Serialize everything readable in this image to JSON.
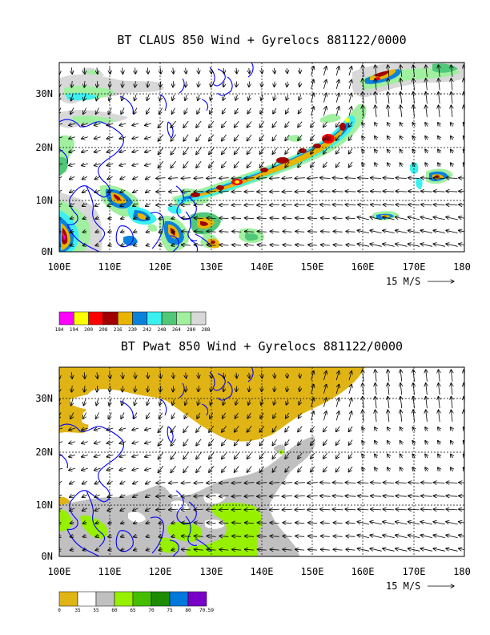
{
  "panels": [
    {
      "id": "claus",
      "title": "BT CLAUS 850 Wind + Gyrelocs 881122/0000",
      "y_ticks": [
        "30N",
        "20N",
        "10N",
        "0N"
      ],
      "x_ticks": [
        "100E",
        "110E",
        "120E",
        "130E",
        "140E",
        "150E",
        "160E",
        "170E",
        "180"
      ],
      "ref_vector_label": "15 M/S",
      "colorbar_labels": [
        "184",
        "194",
        "200",
        "208",
        "216",
        "230",
        "242",
        "248",
        "264",
        "280",
        "288"
      ],
      "colorbar_colors": [
        "#ff00ff",
        "#ffff00",
        "#ff0000",
        "#a00000",
        "#e8b400",
        "#0a82dc",
        "#3cf0f0",
        "#50c878",
        "#a0f0a0",
        "#d8d8d8"
      ]
    },
    {
      "id": "pwat",
      "title": "BT Pwat 850 Wind + Gyrelocs 881122/0000",
      "y_ticks": [
        "30N",
        "20N",
        "10N",
        "0N"
      ],
      "x_ticks": [
        "100E",
        "110E",
        "120E",
        "130E",
        "140E",
        "150E",
        "160E",
        "170E",
        "180"
      ],
      "ref_vector_label": "15 M/S",
      "colorbar_labels": [
        "0",
        "35",
        "55",
        "60",
        "65",
        "70",
        "75",
        "80",
        "70.59"
      ],
      "colorbar_colors": [
        "#e0b414",
        "#ffffff",
        "#c0c0c0",
        "#96f000",
        "#46be00",
        "#1e8c00",
        "#0078dc",
        "#7800c8"
      ]
    }
  ],
  "colors": {
    "coastline": "#0000ff",
    "claus_fill": "#d8d8d8",
    "pwat_dry": "#e0b414",
    "pwat_mid": "#c0c0c0",
    "pwat_wet": "#96f000"
  }
}
